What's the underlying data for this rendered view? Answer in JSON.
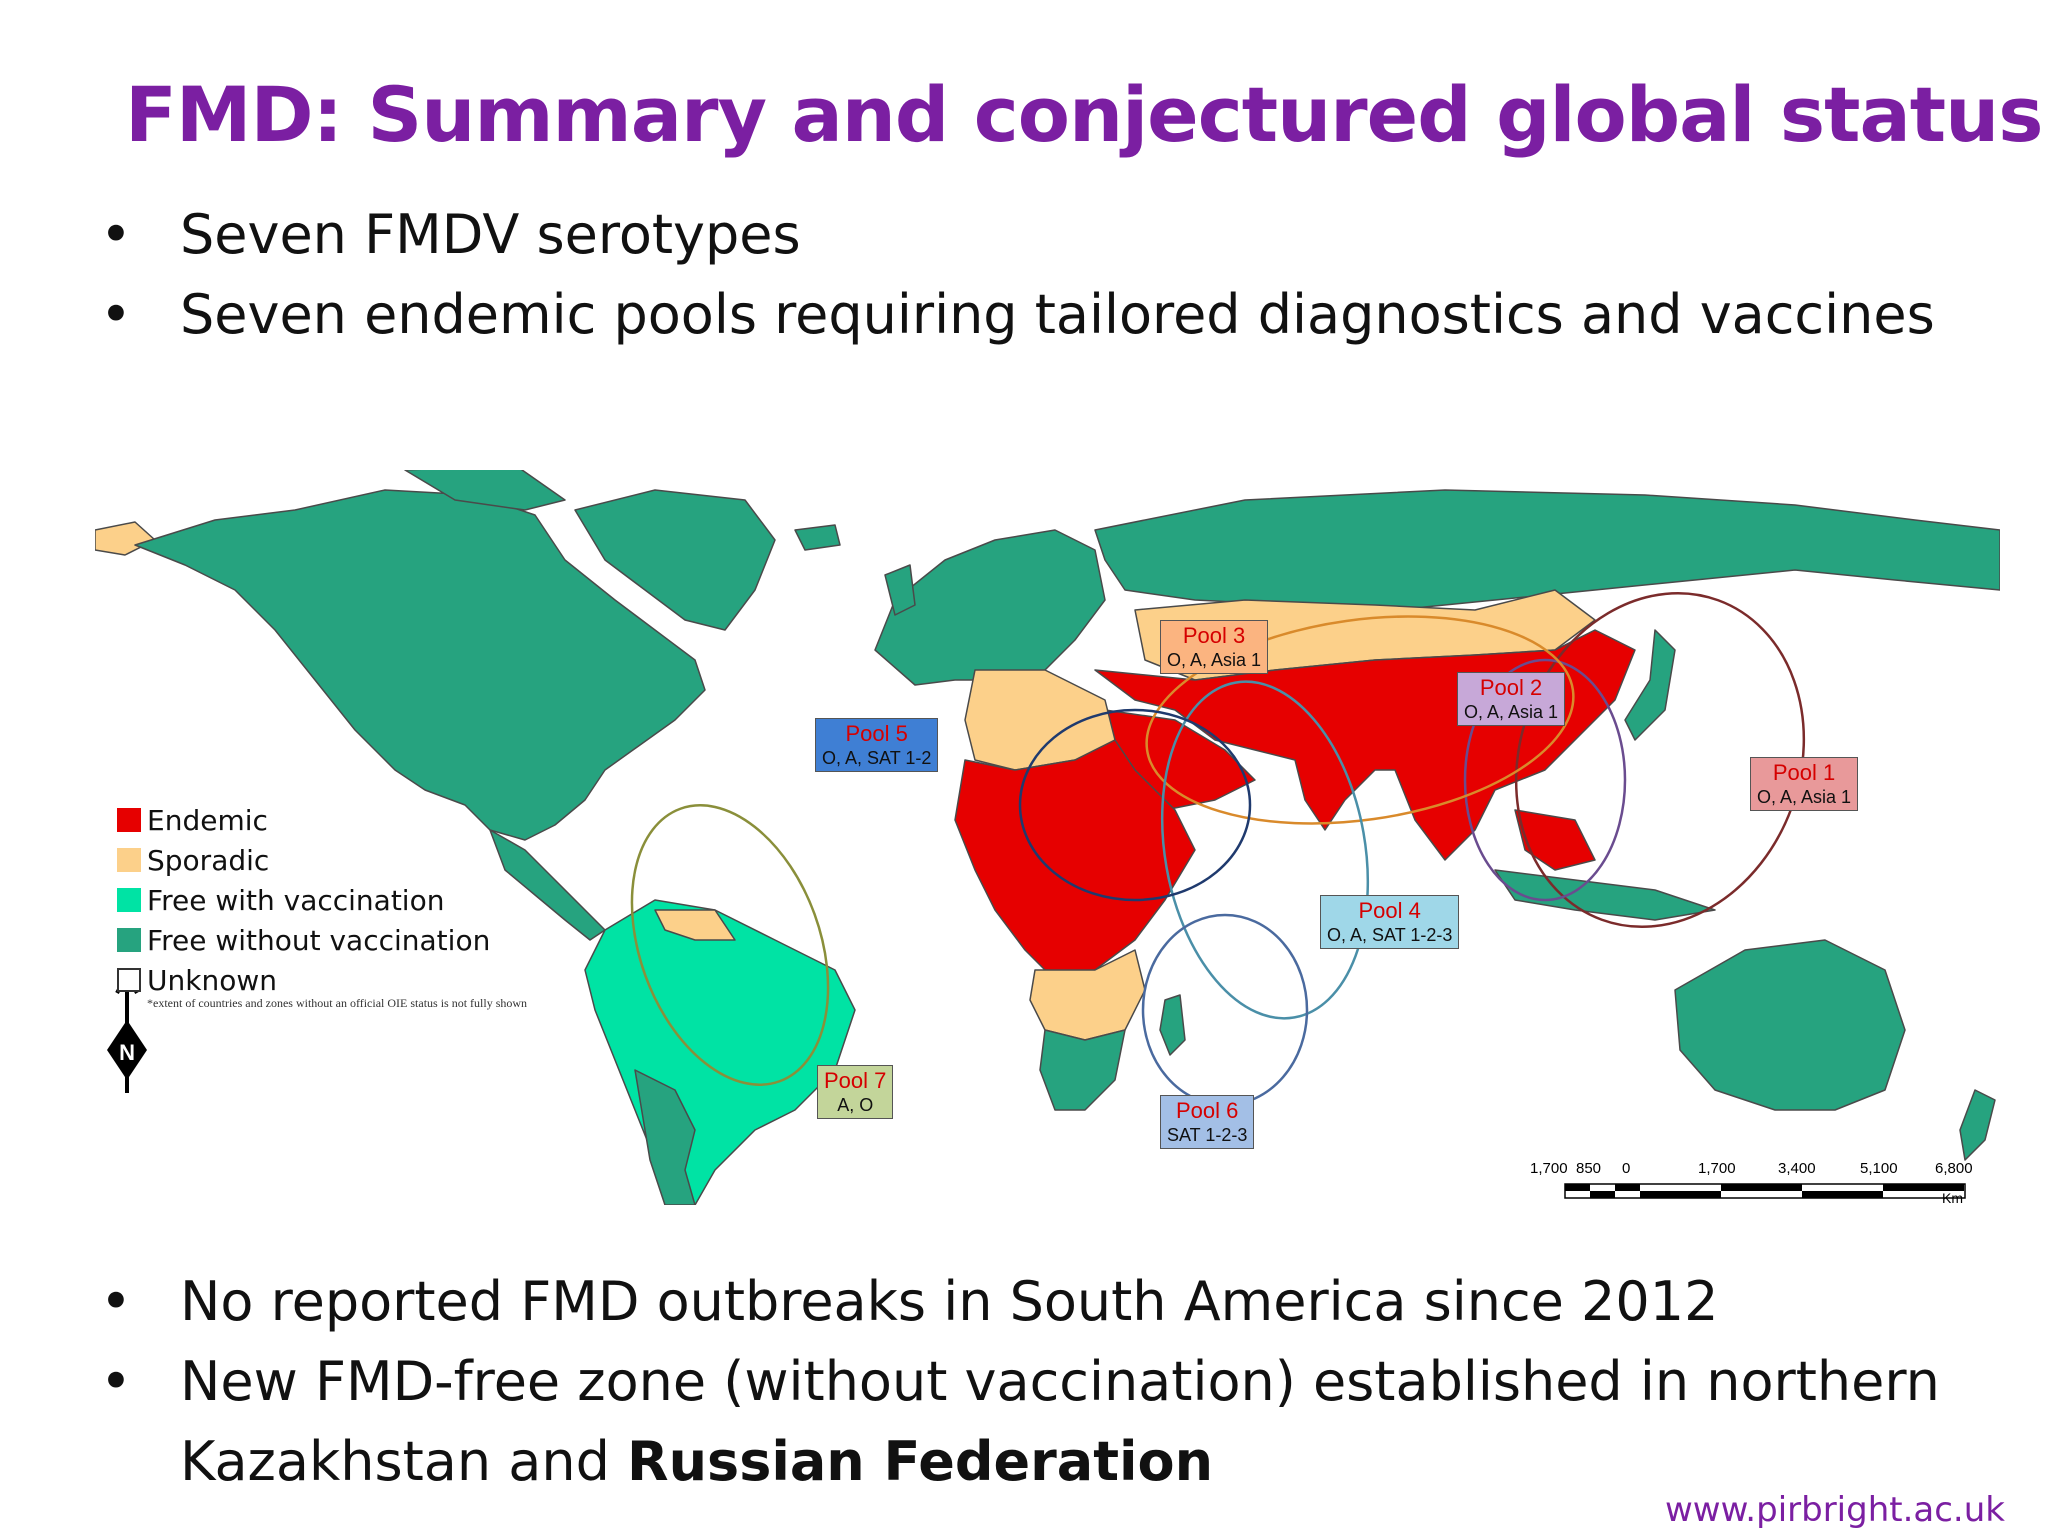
{
  "slide": {
    "title": "FMD: Summary and conjectured global status",
    "bullets_top": [
      "Seven FMDV serotypes",
      "Seven endemic pools requiring tailored diagnostics and vaccines"
    ],
    "bullets_bottom": [
      "No reported FMD outbreaks in South America since 2012",
      "New FMD-free zone (without vaccination) established in northern"
    ],
    "bullet_last_prefix": "Kazakhstan and ",
    "bullet_last_bold": "Russian Federation",
    "url": "www.pirbright.ac.uk"
  },
  "map": {
    "legend": [
      {
        "label": "Endemic",
        "color": "#e60000"
      },
      {
        "label": "Sporadic",
        "color": "#fcd08a"
      },
      {
        "label": "Free with vaccination",
        "color": "#00e3a4"
      },
      {
        "label": "Free without vaccination",
        "color": "#26a37f"
      },
      {
        "label": "Unknown",
        "color": "#ffffff"
      }
    ],
    "legend_note": "*extent of countries and zones without an official OIE status is not fully shown",
    "pools": [
      {
        "name": "Pool 1",
        "serotypes": "O, A, Asia 1",
        "bg": "#e8999a"
      },
      {
        "name": "Pool 2",
        "serotypes": "O, A, Asia 1",
        "bg": "#c7a8d8"
      },
      {
        "name": "Pool 3",
        "serotypes": "O, A, Asia 1",
        "bg": "#fbb480"
      },
      {
        "name": "Pool 4",
        "serotypes": "O, A, SAT 1-2-3",
        "bg": "#9fd7e8"
      },
      {
        "name": "Pool 5",
        "serotypes": "O, A, SAT 1-2",
        "bg": "#3f7fd4"
      },
      {
        "name": "Pool 6",
        "serotypes": "SAT 1-2-3",
        "bg": "#a3bfe6"
      },
      {
        "name": "Pool 7",
        "serotypes": "A, O",
        "bg": "#c3d59a"
      }
    ],
    "scale_labels": [
      "1,700",
      "850",
      "0",
      "1,700",
      "3,400",
      "5,100",
      "6,800"
    ],
    "scale_unit": "Km",
    "north_label": "N",
    "colors": {
      "endemic": "#e60000",
      "sporadic": "#fcd08a",
      "free_with_vaccination": "#00e3a4",
      "free_without_vaccination": "#26a37f",
      "border": "#4a4a4a"
    }
  }
}
